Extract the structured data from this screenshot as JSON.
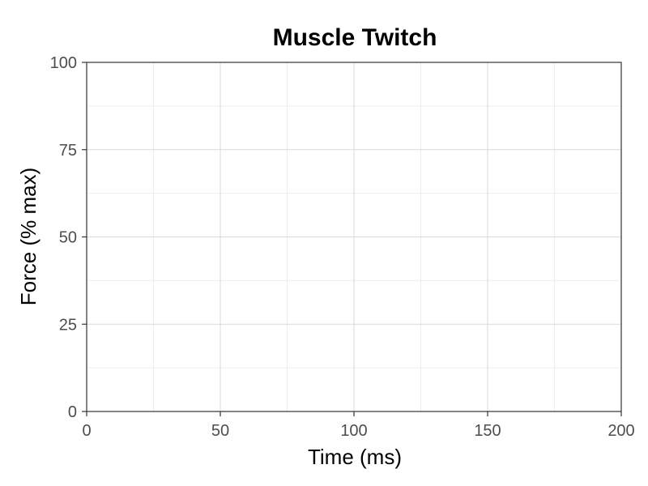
{
  "chart_data": {
    "type": "line",
    "title": "Muscle Twitch",
    "xlabel": "Time (ms)",
    "ylabel": "Force (% max)",
    "xlim": [
      0,
      200
    ],
    "ylim": [
      0,
      100
    ],
    "x_ticks": [
      0,
      50,
      100,
      150,
      200
    ],
    "x_minor_ticks": [
      25,
      75,
      125,
      175
    ],
    "y_ticks": [
      0,
      25,
      50,
      75,
      100
    ],
    "y_minor_ticks": [
      12.5,
      37.5,
      62.5,
      87.5
    ],
    "grid": true,
    "series": []
  }
}
